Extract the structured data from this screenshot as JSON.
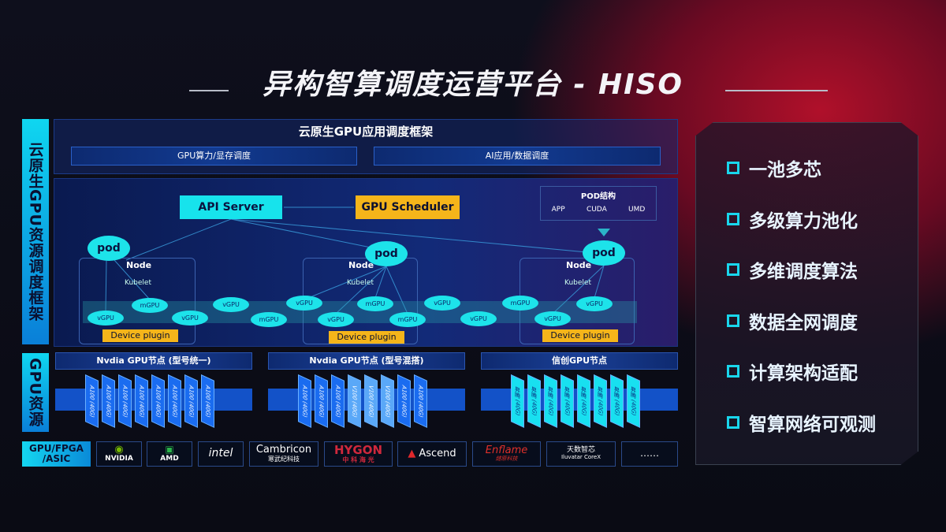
{
  "title": "异构智算调度运营平台 - HISO",
  "framework": {
    "vertical_label": "云原生GPU资源调度框架",
    "header": "云原生GPU应用调度框架",
    "sub_left": "GPU算力/显存调度",
    "sub_right": "AI应用/数据调度"
  },
  "diagram": {
    "api_server": "API Server",
    "gpu_scheduler": "GPU Scheduler",
    "pod_structure": {
      "title": "POD结构",
      "items": [
        "APP",
        "CUDA",
        "UMD"
      ]
    },
    "pod": "pod",
    "node": "Node",
    "kubelet": "Kubelet",
    "device_plugin": "Device plugin",
    "gpus": [
      "vGPU",
      "mGPU",
      "vGPU",
      "vGPU",
      "mGPU",
      "vGPU",
      "vGPU",
      "mGPU",
      "mGPU",
      "vGPU",
      "vGPU",
      "mGPU",
      "vGPU",
      "vGPU"
    ]
  },
  "resources": {
    "vertical_label": "GPU资源",
    "groups": [
      {
        "title": "Nvdia GPU节点 (型号统一)",
        "cards": [
          "A100 (40G)",
          "A100 (40G)",
          "A100 (40G)",
          "A100 (40G)",
          "A100 (40G)",
          "A100 (40G)",
          "A100 (40G)",
          "A100 (40G)"
        ]
      },
      {
        "title": "Nvdia GPU节点 (型号混搭)",
        "cards": [
          "A100 (40G)",
          "A100 (40G)",
          "A100 (40G)",
          "V100 (40G)",
          "V100 (40G)",
          "V100 (40G)",
          "A100 (40G)",
          "A100 (40G)"
        ]
      },
      {
        "title": "信创GPU节点",
        "cards": [
          "昇腾 (40G)",
          "昇腾 (40G)",
          "昇腾 (40G)",
          "昇腾 (40G)",
          "昇腾 (40G)",
          "昇腾 (40G)",
          "昇腾 (40G)",
          "昇腾 (40G)"
        ]
      }
    ]
  },
  "vendors": {
    "label": "GPU/FPGA /ASIC",
    "logos": [
      "NVIDIA",
      "AMD",
      "intel",
      "Cambricon",
      "HYGON",
      "Ascend",
      "Enflame",
      "Iluvatar CoreX",
      "……"
    ],
    "logo_sub": {
      "Cambricon": "寒武纪科技",
      "HYGON": "中 科 海 光",
      "Enflame": "燧原科技",
      "Iluvatar CoreX": "天数智芯"
    }
  },
  "features": [
    "一池多芯",
    "多级算力池化",
    "多维调度算法",
    "数据全网调度",
    "计算架构适配",
    "智算网络可观测"
  ],
  "colors": {
    "cyan": "#17e3ec",
    "yellow": "#f5b51a",
    "blue": "#1352c8",
    "red": "#b0102a"
  }
}
